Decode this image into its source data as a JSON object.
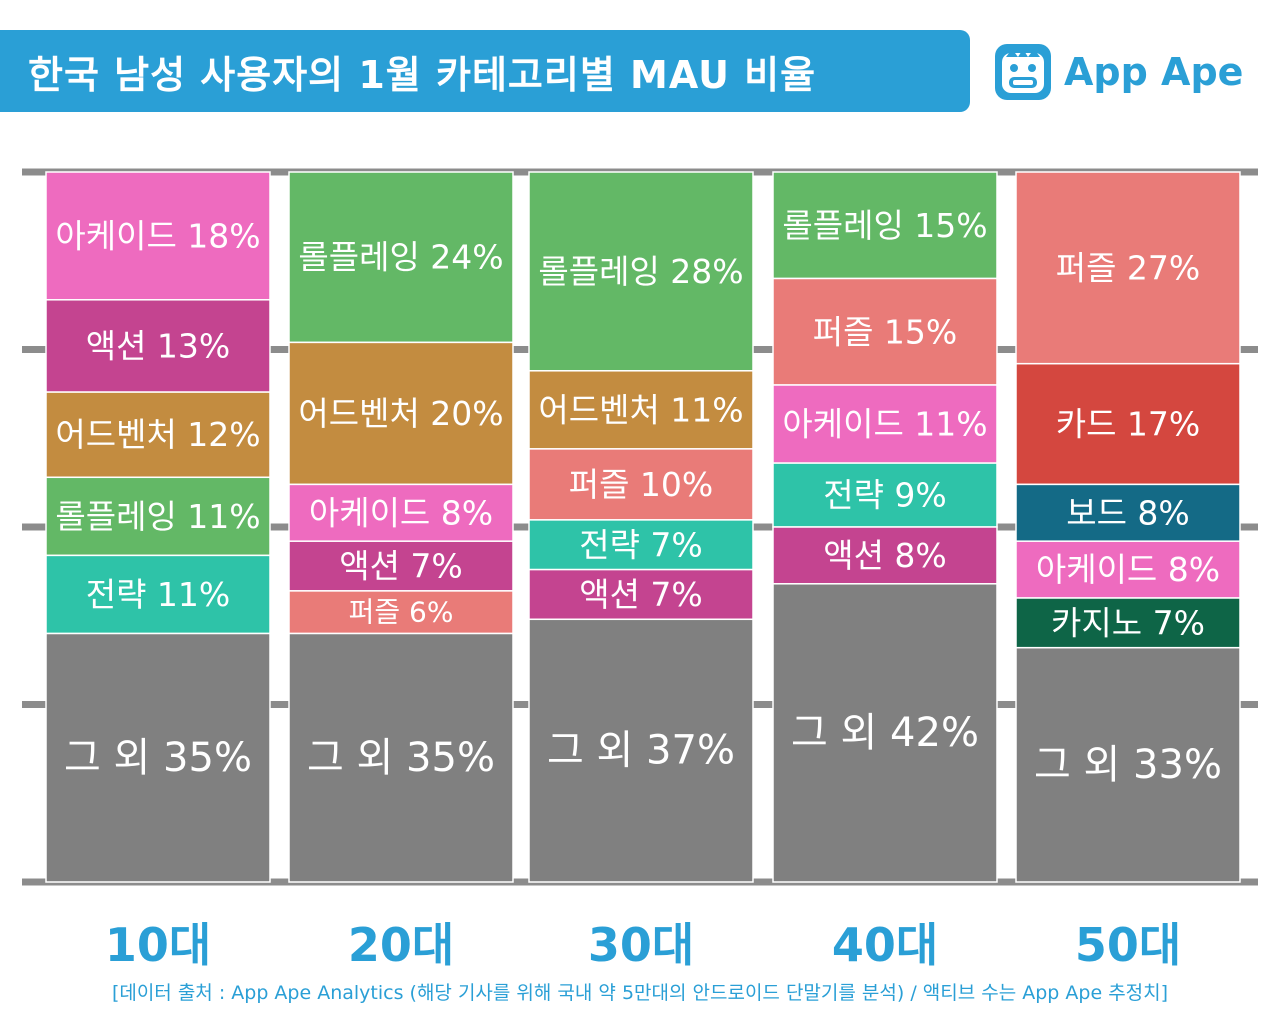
{
  "title": "한국 남성 사용자의 1월 카테고리별 MAU 비율",
  "logo": {
    "text": "App Ape"
  },
  "footnote": "[데이터 출처 : App Ape Analytics (해당 기사를 위해 국내 약 5만대의 안드로이드 단말기를 분석) / 액티브 수는 App Ape 추정치]",
  "colors": {
    "header": "#2a9fd6",
    "gridline": "#8c8c8c",
    "other": "#808080",
    "arcade": "#ee6bbf",
    "action": "#c44490",
    "adventure": "#c38c40",
    "roleplay": "#63b866",
    "strategy": "#2ec3a8",
    "puzzle": "#e97b78",
    "card": "#d4473f",
    "board": "#146a86",
    "casino": "#0e6547"
  },
  "chart_data": {
    "type": "bar",
    "stacked": true,
    "title": "한국 남성 사용자의 1월 카테고리별 MAU 비율",
    "xlabel": "",
    "ylabel": "",
    "ylim": [
      0,
      100
    ],
    "grid": true,
    "categories": [
      "10대",
      "20대",
      "30대",
      "40대",
      "50대"
    ],
    "stacks": [
      {
        "category": "10대",
        "segments": [
          {
            "label": "아케이드 18%",
            "value": 18,
            "color_key": "arcade"
          },
          {
            "label": "액션 13%",
            "value": 13,
            "color_key": "action"
          },
          {
            "label": "어드벤처 12%",
            "value": 12,
            "color_key": "adventure"
          },
          {
            "label": "롤플레잉 11%",
            "value": 11,
            "color_key": "roleplay"
          },
          {
            "label": "전략 11%",
            "value": 11,
            "color_key": "strategy"
          },
          {
            "label": "그 외 35%",
            "value": 35,
            "color_key": "other"
          }
        ]
      },
      {
        "category": "20대",
        "segments": [
          {
            "label": "롤플레잉 24%",
            "value": 24,
            "color_key": "roleplay"
          },
          {
            "label": "어드벤처 20%",
            "value": 20,
            "color_key": "adventure"
          },
          {
            "label": "아케이드 8%",
            "value": 8,
            "color_key": "arcade"
          },
          {
            "label": "액션 7%",
            "value": 7,
            "color_key": "action"
          },
          {
            "label": "퍼즐 6%",
            "value": 6,
            "color_key": "puzzle"
          },
          {
            "label": "그 외 35%",
            "value": 35,
            "color_key": "other"
          }
        ]
      },
      {
        "category": "30대",
        "segments": [
          {
            "label": "롤플레잉 28%",
            "value": 28,
            "color_key": "roleplay"
          },
          {
            "label": "어드벤처 11%",
            "value": 11,
            "color_key": "adventure"
          },
          {
            "label": "퍼즐 10%",
            "value": 10,
            "color_key": "puzzle"
          },
          {
            "label": "전략 7%",
            "value": 7,
            "color_key": "strategy"
          },
          {
            "label": "액션 7%",
            "value": 7,
            "color_key": "action"
          },
          {
            "label": "그 외 37%",
            "value": 37,
            "color_key": "other"
          }
        ]
      },
      {
        "category": "40대",
        "segments": [
          {
            "label": "롤플레잉 15%",
            "value": 15,
            "color_key": "roleplay"
          },
          {
            "label": "퍼즐 15%",
            "value": 15,
            "color_key": "puzzle"
          },
          {
            "label": "아케이드 11%",
            "value": 11,
            "color_key": "arcade"
          },
          {
            "label": "전략 9%",
            "value": 9,
            "color_key": "strategy"
          },
          {
            "label": "액션 8%",
            "value": 8,
            "color_key": "action"
          },
          {
            "label": "그 외 42%",
            "value": 42,
            "color_key": "other"
          }
        ]
      },
      {
        "category": "50대",
        "segments": [
          {
            "label": "퍼즐 27%",
            "value": 27,
            "color_key": "puzzle"
          },
          {
            "label": "카드 17%",
            "value": 17,
            "color_key": "card"
          },
          {
            "label": "보드 8%",
            "value": 8,
            "color_key": "board"
          },
          {
            "label": "아케이드 8%",
            "value": 8,
            "color_key": "arcade"
          },
          {
            "label": "카지노 7%",
            "value": 7,
            "color_key": "casino"
          },
          {
            "label": "그 외 33%",
            "value": 33,
            "color_key": "other"
          }
        ]
      }
    ]
  }
}
